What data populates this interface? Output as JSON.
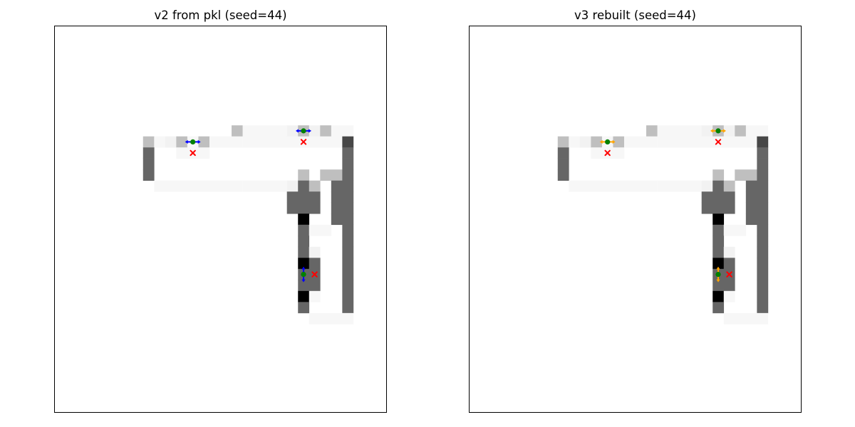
{
  "chart_data": [
    {
      "type": "heatmap",
      "title": "v2 from pkl (seed=44)",
      "grid_size": [
        35,
        30
      ],
      "colormap": "gray_r",
      "axes_visible": false,
      "cells": [
        {
          "row": 9,
          "cols": [
            16
          ],
          "value": 0.25
        },
        {
          "row": 9,
          "cols": [
            17,
            18,
            19,
            20
          ],
          "value": 0.03
        },
        {
          "row": 9,
          "cols": [
            21
          ],
          "value": 0.05
        },
        {
          "row": 9,
          "cols": [
            22
          ],
          "value": 0.25
        },
        {
          "row": 9,
          "cols": [
            23
          ],
          "value": 0.05
        },
        {
          "row": 9,
          "cols": [
            24
          ],
          "value": 0.25
        },
        {
          "row": 9,
          "cols": [
            25,
            26
          ],
          "value": 0.03
        },
        {
          "row": 10,
          "cols": [
            8
          ],
          "value": 0.25
        },
        {
          "row": 10,
          "cols": [
            9
          ],
          "value": 0.03
        },
        {
          "row": 10,
          "cols": [
            10
          ],
          "value": 0.05
        },
        {
          "row": 10,
          "cols": [
            11
          ],
          "value": 0.25
        },
        {
          "row": 10,
          "cols": [
            12
          ],
          "value": 0.03
        },
        {
          "row": 10,
          "cols": [
            13
          ],
          "value": 0.25
        },
        {
          "row": 10,
          "cols": [
            14,
            15,
            16,
            17,
            18,
            19,
            20,
            21,
            22,
            23,
            24,
            25
          ],
          "value": 0.03
        },
        {
          "row": 10,
          "cols": [
            26
          ],
          "value": 0.72
        },
        {
          "row": 11,
          "cols": [
            8
          ],
          "value": 0.6
        },
        {
          "row": 11,
          "cols": [
            11,
            12,
            13
          ],
          "value": 0.03
        },
        {
          "row": 11,
          "cols": [
            26
          ],
          "value": 0.6
        },
        {
          "row": 12,
          "cols": [
            8
          ],
          "value": 0.6
        },
        {
          "row": 12,
          "cols": [
            26
          ],
          "value": 0.6
        },
        {
          "row": 13,
          "cols": [
            8
          ],
          "value": 0.6
        },
        {
          "row": 13,
          "cols": [
            22
          ],
          "value": 0.25
        },
        {
          "row": 13,
          "cols": [
            24,
            25
          ],
          "value": 0.25
        },
        {
          "row": 13,
          "cols": [
            26
          ],
          "value": 0.6
        },
        {
          "row": 14,
          "cols": [
            9,
            10,
            11,
            12,
            13,
            14,
            15,
            16,
            17,
            18,
            19,
            20
          ],
          "value": 0.03
        },
        {
          "row": 14,
          "cols": [
            21
          ],
          "value": 0.05
        },
        {
          "row": 14,
          "cols": [
            22
          ],
          "value": 0.6
        },
        {
          "row": 14,
          "cols": [
            23
          ],
          "value": 0.25
        },
        {
          "row": 14,
          "cols": [
            25,
            26
          ],
          "value": 0.6
        },
        {
          "row": 15,
          "cols": [
            21,
            22,
            23
          ],
          "value": 0.6
        },
        {
          "row": 15,
          "cols": [
            25,
            26
          ],
          "value": 0.6
        },
        {
          "row": 16,
          "cols": [
            21,
            22,
            23
          ],
          "value": 0.6
        },
        {
          "row": 16,
          "cols": [
            25,
            26
          ],
          "value": 0.6
        },
        {
          "row": 17,
          "cols": [
            22
          ],
          "value": 1.0
        },
        {
          "row": 17,
          "cols": [
            25,
            26
          ],
          "value": 0.6
        },
        {
          "row": 18,
          "cols": [
            22
          ],
          "value": 0.6
        },
        {
          "row": 18,
          "cols": [
            23,
            24
          ],
          "value": 0.03
        },
        {
          "row": 18,
          "cols": [
            26
          ],
          "value": 0.6
        },
        {
          "row": 19,
          "cols": [
            22
          ],
          "value": 0.6
        },
        {
          "row": 19,
          "cols": [
            26
          ],
          "value": 0.6
        },
        {
          "row": 20,
          "cols": [
            22
          ],
          "value": 0.6
        },
        {
          "row": 20,
          "cols": [
            23
          ],
          "value": 0.05
        },
        {
          "row": 20,
          "cols": [
            26
          ],
          "value": 0.6
        },
        {
          "row": 21,
          "cols": [
            22
          ],
          "value": 1.0
        },
        {
          "row": 21,
          "cols": [
            23
          ],
          "value": 0.6
        },
        {
          "row": 21,
          "cols": [
            26
          ],
          "value": 0.6
        },
        {
          "row": 22,
          "cols": [
            22,
            23
          ],
          "value": 0.6
        },
        {
          "row": 22,
          "cols": [
            26
          ],
          "value": 0.6
        },
        {
          "row": 23,
          "cols": [
            22,
            23
          ],
          "value": 0.6
        },
        {
          "row": 23,
          "cols": [
            26
          ],
          "value": 0.6
        },
        {
          "row": 24,
          "cols": [
            22
          ],
          "value": 1.0
        },
        {
          "row": 24,
          "cols": [
            23
          ],
          "value": 0.03
        },
        {
          "row": 24,
          "cols": [
            26
          ],
          "value": 0.6
        },
        {
          "row": 25,
          "cols": [
            22
          ],
          "value": 0.6
        },
        {
          "row": 25,
          "cols": [
            26
          ],
          "value": 0.6
        },
        {
          "row": 26,
          "cols": [
            23,
            24,
            25,
            26
          ],
          "value": 0.03
        }
      ],
      "agents": [
        {
          "x": 12.5,
          "y": 10.5,
          "direction": "horizontal",
          "arrow_color": "#0000ff"
        },
        {
          "x": 22.5,
          "y": 9.5,
          "direction": "horizontal",
          "arrow_color": "#0000ff"
        },
        {
          "x": 22.5,
          "y": 22.5,
          "direction": "vertical",
          "arrow_color": "#0000ff"
        }
      ],
      "agent_color": "#008000",
      "goals": [
        {
          "x": 12.5,
          "y": 11.5
        },
        {
          "x": 22.5,
          "y": 10.5
        },
        {
          "x": 23.5,
          "y": 22.5
        }
      ],
      "goal_color": "#ff0000"
    },
    {
      "type": "heatmap",
      "title": "v3 rebuilt (seed=44)",
      "grid_size": [
        35,
        30
      ],
      "colormap": "gray_r",
      "axes_visible": false,
      "cells": [
        {
          "row": 9,
          "cols": [
            16
          ],
          "value": 0.25
        },
        {
          "row": 9,
          "cols": [
            17,
            18,
            19,
            20
          ],
          "value": 0.03
        },
        {
          "row": 9,
          "cols": [
            21
          ],
          "value": 0.05
        },
        {
          "row": 9,
          "cols": [
            22
          ],
          "value": 0.25
        },
        {
          "row": 9,
          "cols": [
            23
          ],
          "value": 0.05
        },
        {
          "row": 9,
          "cols": [
            24
          ],
          "value": 0.25
        },
        {
          "row": 9,
          "cols": [
            25,
            26
          ],
          "value": 0.03
        },
        {
          "row": 10,
          "cols": [
            8
          ],
          "value": 0.25
        },
        {
          "row": 10,
          "cols": [
            9
          ],
          "value": 0.03
        },
        {
          "row": 10,
          "cols": [
            10
          ],
          "value": 0.05
        },
        {
          "row": 10,
          "cols": [
            11
          ],
          "value": 0.25
        },
        {
          "row": 10,
          "cols": [
            12
          ],
          "value": 0.03
        },
        {
          "row": 10,
          "cols": [
            13
          ],
          "value": 0.25
        },
        {
          "row": 10,
          "cols": [
            14,
            15,
            16,
            17,
            18,
            19,
            20,
            21,
            22,
            23,
            24,
            25
          ],
          "value": 0.03
        },
        {
          "row": 10,
          "cols": [
            26
          ],
          "value": 0.72
        },
        {
          "row": 11,
          "cols": [
            8
          ],
          "value": 0.6
        },
        {
          "row": 11,
          "cols": [
            11,
            12,
            13
          ],
          "value": 0.03
        },
        {
          "row": 11,
          "cols": [
            26
          ],
          "value": 0.6
        },
        {
          "row": 12,
          "cols": [
            8
          ],
          "value": 0.6
        },
        {
          "row": 12,
          "cols": [
            26
          ],
          "value": 0.6
        },
        {
          "row": 13,
          "cols": [
            8
          ],
          "value": 0.6
        },
        {
          "row": 13,
          "cols": [
            22
          ],
          "value": 0.25
        },
        {
          "row": 13,
          "cols": [
            24,
            25
          ],
          "value": 0.25
        },
        {
          "row": 13,
          "cols": [
            26
          ],
          "value": 0.6
        },
        {
          "row": 14,
          "cols": [
            9,
            10,
            11,
            12,
            13,
            14,
            15,
            16,
            17,
            18,
            19,
            20
          ],
          "value": 0.03
        },
        {
          "row": 14,
          "cols": [
            21
          ],
          "value": 0.05
        },
        {
          "row": 14,
          "cols": [
            22
          ],
          "value": 0.6
        },
        {
          "row": 14,
          "cols": [
            23
          ],
          "value": 0.25
        },
        {
          "row": 14,
          "cols": [
            25,
            26
          ],
          "value": 0.6
        },
        {
          "row": 15,
          "cols": [
            21,
            22,
            23
          ],
          "value": 0.6
        },
        {
          "row": 15,
          "cols": [
            25,
            26
          ],
          "value": 0.6
        },
        {
          "row": 16,
          "cols": [
            21,
            22,
            23
          ],
          "value": 0.6
        },
        {
          "row": 16,
          "cols": [
            25,
            26
          ],
          "value": 0.6
        },
        {
          "row": 17,
          "cols": [
            22
          ],
          "value": 1.0
        },
        {
          "row": 17,
          "cols": [
            25,
            26
          ],
          "value": 0.6
        },
        {
          "row": 18,
          "cols": [
            22
          ],
          "value": 0.6
        },
        {
          "row": 18,
          "cols": [
            23,
            24
          ],
          "value": 0.03
        },
        {
          "row": 18,
          "cols": [
            26
          ],
          "value": 0.6
        },
        {
          "row": 19,
          "cols": [
            22
          ],
          "value": 0.6
        },
        {
          "row": 19,
          "cols": [
            26
          ],
          "value": 0.6
        },
        {
          "row": 20,
          "cols": [
            22
          ],
          "value": 0.6
        },
        {
          "row": 20,
          "cols": [
            23
          ],
          "value": 0.05
        },
        {
          "row": 20,
          "cols": [
            26
          ],
          "value": 0.6
        },
        {
          "row": 21,
          "cols": [
            22
          ],
          "value": 1.0
        },
        {
          "row": 21,
          "cols": [
            23
          ],
          "value": 0.6
        },
        {
          "row": 21,
          "cols": [
            26
          ],
          "value": 0.6
        },
        {
          "row": 22,
          "cols": [
            22,
            23
          ],
          "value": 0.6
        },
        {
          "row": 22,
          "cols": [
            26
          ],
          "value": 0.6
        },
        {
          "row": 23,
          "cols": [
            22,
            23
          ],
          "value": 0.6
        },
        {
          "row": 23,
          "cols": [
            26
          ],
          "value": 0.6
        },
        {
          "row": 24,
          "cols": [
            22
          ],
          "value": 1.0
        },
        {
          "row": 24,
          "cols": [
            23
          ],
          "value": 0.03
        },
        {
          "row": 24,
          "cols": [
            26
          ],
          "value": 0.6
        },
        {
          "row": 25,
          "cols": [
            22
          ],
          "value": 0.6
        },
        {
          "row": 25,
          "cols": [
            26
          ],
          "value": 0.6
        },
        {
          "row": 26,
          "cols": [
            23,
            24,
            25,
            26
          ],
          "value": 0.03
        }
      ],
      "agents": [
        {
          "x": 12.5,
          "y": 10.5,
          "direction": "horizontal",
          "arrow_color": "#ffa500"
        },
        {
          "x": 22.5,
          "y": 9.5,
          "direction": "horizontal",
          "arrow_color": "#ffa500"
        },
        {
          "x": 22.5,
          "y": 22.5,
          "direction": "vertical",
          "arrow_color": "#ffa500"
        }
      ],
      "agent_color": "#008000",
      "goals": [
        {
          "x": 12.5,
          "y": 11.5
        },
        {
          "x": 22.5,
          "y": 10.5
        },
        {
          "x": 23.5,
          "y": 22.5
        }
      ],
      "goal_color": "#ff0000"
    }
  ]
}
